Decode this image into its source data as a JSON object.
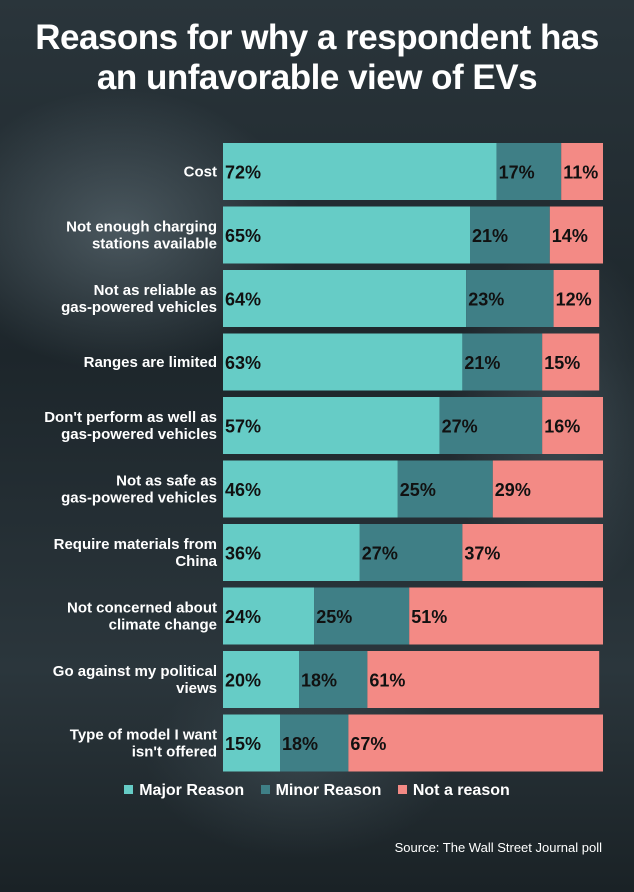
{
  "title_lines": [
    "Reasons for why a respondent has",
    "an unfavorable view of EVs"
  ],
  "source": "Source: The Wall Street Journal poll",
  "colors": {
    "major": "#66ccc6",
    "minor": "#3f7f86",
    "not": "#f38a85"
  },
  "chart_data": {
    "type": "bar",
    "orientation": "horizontal",
    "stacked": true,
    "categories": [
      [
        "Cost"
      ],
      [
        "Not enough charging",
        "stations available"
      ],
      [
        "Not as reliable as",
        "gas-powered vehicles"
      ],
      [
        "Ranges are limited"
      ],
      [
        "Don't perform as well as",
        "gas-powered vehicles"
      ],
      [
        "Not as safe as",
        "gas-powered vehicles"
      ],
      [
        "Require materials from",
        "China"
      ],
      [
        "Not concerned about",
        "climate change"
      ],
      [
        "Go against my political",
        "views"
      ],
      [
        "Type of model I want",
        "isn't offered"
      ]
    ],
    "series": [
      {
        "name": "Major Reason",
        "values": [
          72,
          65,
          64,
          63,
          57,
          46,
          36,
          24,
          20,
          15
        ]
      },
      {
        "name": "Minor Reason",
        "values": [
          17,
          21,
          23,
          21,
          27,
          25,
          27,
          25,
          18,
          18
        ]
      },
      {
        "name": "Not a reason",
        "values": [
          11,
          14,
          12,
          15,
          16,
          29,
          37,
          51,
          61,
          67
        ]
      }
    ],
    "value_suffix": "%",
    "legend": "bottom-center"
  }
}
